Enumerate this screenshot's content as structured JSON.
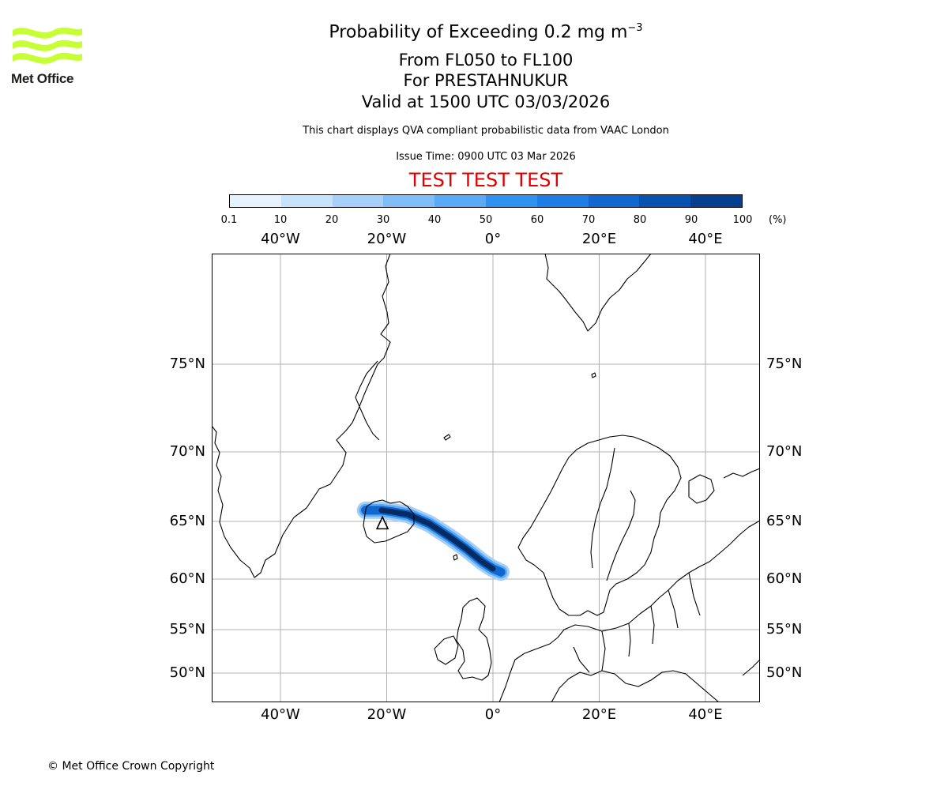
{
  "logo": {
    "text": "Met Office",
    "color": "#c6ff33"
  },
  "header": {
    "title_main": "Probability of Exceeding 0.2 mg m",
    "title_sup": "−3",
    "level_range": "From FL050 to FL100",
    "volcano": "For PRESTAHNUKUR",
    "valid_time": "Valid at 1500 UTC 03/03/2026",
    "disclaimer": "This chart displays QVA compliant probabilistic data from VAAC London",
    "issue_time": "Issue Time: 0900 UTC 03 Mar 2026",
    "test_banner": "TEST TEST TEST"
  },
  "colorbar": {
    "ticks": [
      "0.1",
      "10",
      "20",
      "30",
      "40",
      "50",
      "60",
      "70",
      "80",
      "90",
      "100"
    ],
    "unit": "(%)",
    "colors": [
      "#e6f2fd",
      "#c7e2fb",
      "#a6d0f9",
      "#80bdf7",
      "#5aaaf5",
      "#2f92f0",
      "#1e7ee6",
      "#0f67cf",
      "#0a52b0",
      "#063f8d",
      "#042c63"
    ]
  },
  "map": {
    "lon_labels": [
      "40°W",
      "20°W",
      "0°",
      "20°E",
      "40°E"
    ],
    "lat_labels": [
      "75°N",
      "70°N",
      "65°N",
      "60°N",
      "55°N",
      "50°N"
    ],
    "coastline_color": "#000000",
    "gridline_color": "#b0b0b0"
  },
  "plume": {
    "source_lat": 64.7,
    "source_lon": -20.8,
    "path": [
      {
        "lat": 65.8,
        "lon": -24,
        "prob": 30
      },
      {
        "lat": 65.8,
        "lon": -21,
        "prob": 95
      },
      {
        "lat": 65.7,
        "lon": -19,
        "prob": 95
      },
      {
        "lat": 65.5,
        "lon": -16,
        "prob": 95
      },
      {
        "lat": 64.8,
        "lon": -12,
        "prob": 95
      },
      {
        "lat": 63.6,
        "lon": -8,
        "prob": 95
      },
      {
        "lat": 62.6,
        "lon": -5,
        "prob": 95
      },
      {
        "lat": 61.5,
        "lon": -2,
        "prob": 90
      },
      {
        "lat": 60.9,
        "lon": 0,
        "prob": 60
      },
      {
        "lat": 60.6,
        "lon": 1.5,
        "prob": 30
      }
    ]
  },
  "footer": {
    "copyright": "© Met Office Crown Copyright"
  }
}
